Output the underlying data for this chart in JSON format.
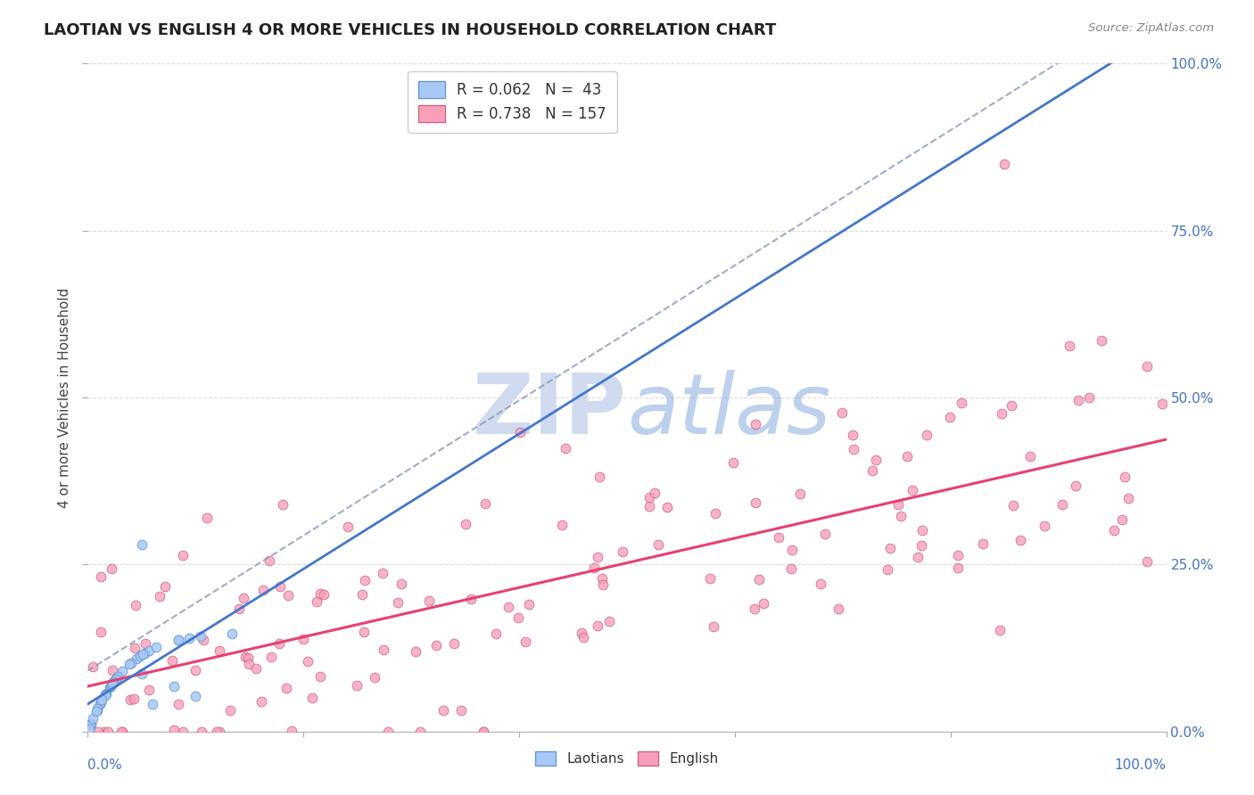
{
  "title": "LAOTIAN VS ENGLISH 4 OR MORE VEHICLES IN HOUSEHOLD CORRELATION CHART",
  "source": "Source: ZipAtlas.com",
  "ylabel": "4 or more Vehicles in Household",
  "laotian_color": "#a8c8f8",
  "laotian_edge_color": "#6699cc",
  "english_color": "#f8a0b8",
  "english_edge_color": "#cc6688",
  "laotian_line_color": "#4477cc",
  "english_line_color": "#e84070",
  "laotian_dash_color": "#8899bb",
  "watermark_color": "#ccd8ee",
  "bg_color": "#ffffff",
  "grid_color": "#cccccc",
  "tick_label_color": "#4472c4",
  "title_color": "#222222",
  "source_color": "#888888",
  "ylabel_color": "#444444",
  "xlim": [
    0,
    100
  ],
  "ylim": [
    0,
    100
  ],
  "ytick_vals": [
    0,
    25,
    50,
    75,
    100
  ],
  "R_laotian": 0.062,
  "N_laotian": 43,
  "R_english": 0.738,
  "N_english": 157
}
